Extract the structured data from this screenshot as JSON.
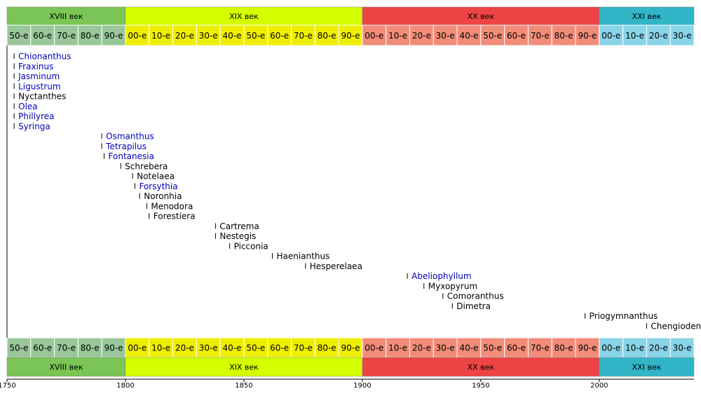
{
  "chart_data": {
    "type": "timeline",
    "xlim": [
      1750,
      2040
    ],
    "xticks": [
      1750,
      1800,
      1850,
      1900,
      1950,
      2000
    ],
    "eras": [
      {
        "label": "XVIII век",
        "start": 1750,
        "end": 1800,
        "color": "#7ac555",
        "decade_color": "#99c799",
        "decades": [
          {
            "label": "50-е",
            "start": 1750,
            "end": 1760
          },
          {
            "label": "60-е",
            "start": 1760,
            "end": 1770
          },
          {
            "label": "70-е",
            "start": 1770,
            "end": 1780
          },
          {
            "label": "80-е",
            "start": 1780,
            "end": 1790
          },
          {
            "label": "90-е",
            "start": 1790,
            "end": 1800
          }
        ]
      },
      {
        "label": "XIX век",
        "start": 1800,
        "end": 1900,
        "color": "#d4ff00",
        "decade_color": "#eeee00",
        "decades": [
          {
            "label": "00-е",
            "start": 1800,
            "end": 1810
          },
          {
            "label": "10-е",
            "start": 1810,
            "end": 1820
          },
          {
            "label": "20-е",
            "start": 1820,
            "end": 1830
          },
          {
            "label": "30-е",
            "start": 1830,
            "end": 1840
          },
          {
            "label": "40-е",
            "start": 1840,
            "end": 1850
          },
          {
            "label": "50-е",
            "start": 1850,
            "end": 1860
          },
          {
            "label": "60-е",
            "start": 1860,
            "end": 1870
          },
          {
            "label": "70-е",
            "start": 1870,
            "end": 1880
          },
          {
            "label": "80-е",
            "start": 1880,
            "end": 1890
          },
          {
            "label": "90-е",
            "start": 1890,
            "end": 1900
          }
        ]
      },
      {
        "label": "XX век",
        "start": 1900,
        "end": 2000,
        "color": "#ee4444",
        "decade_color": "#f28c78",
        "decades": [
          {
            "label": "00-е",
            "start": 1900,
            "end": 1910
          },
          {
            "label": "10-е",
            "start": 1910,
            "end": 1920
          },
          {
            "label": "20-е",
            "start": 1920,
            "end": 1930
          },
          {
            "label": "30-е",
            "start": 1930,
            "end": 1940
          },
          {
            "label": "40-е",
            "start": 1940,
            "end": 1950
          },
          {
            "label": "50-е",
            "start": 1950,
            "end": 1960
          },
          {
            "label": "60-е",
            "start": 1960,
            "end": 1970
          },
          {
            "label": "70-е",
            "start": 1970,
            "end": 1980
          },
          {
            "label": "80-е",
            "start": 1980,
            "end": 1990
          },
          {
            "label": "90-е",
            "start": 1990,
            "end": 2000
          }
        ]
      },
      {
        "label": "XXI век",
        "start": 2000,
        "end": 2040,
        "color": "#33b5c8",
        "decade_color": "#88d4e8",
        "decades": [
          {
            "label": "00-е",
            "start": 2000,
            "end": 2010
          },
          {
            "label": "10-е",
            "start": 2010,
            "end": 2020
          },
          {
            "label": "20-е",
            "start": 2020,
            "end": 2030
          },
          {
            "label": "30-е",
            "start": 2030,
            "end": 2040
          }
        ]
      }
    ],
    "items": [
      {
        "name": "Chionanthus",
        "year": 1753,
        "color": "#0000bb"
      },
      {
        "name": "Fraxinus",
        "year": 1753,
        "color": "#0000bb"
      },
      {
        "name": "Jasminum",
        "year": 1753,
        "color": "#0000bb"
      },
      {
        "name": "Ligustrum",
        "year": 1753,
        "color": "#0000bb"
      },
      {
        "name": "Nyctanthes",
        "year": 1753,
        "color": "#000000"
      },
      {
        "name": "Olea",
        "year": 1753,
        "color": "#0000bb"
      },
      {
        "name": "Phillyrea",
        "year": 1753,
        "color": "#0000bb"
      },
      {
        "name": "Syringa",
        "year": 1753,
        "color": "#0000bb"
      },
      {
        "name": "Osmanthus",
        "year": 1790,
        "color": "#0000bb"
      },
      {
        "name": "Tetrapilus",
        "year": 1790,
        "color": "#0000bb"
      },
      {
        "name": "Fontanesia",
        "year": 1791,
        "color": "#0000bb"
      },
      {
        "name": "Schrebera",
        "year": 1798,
        "color": "#000000"
      },
      {
        "name": "Notelaea",
        "year": 1803,
        "color": "#000000"
      },
      {
        "name": "Forsythia",
        "year": 1804,
        "color": "#0000bb"
      },
      {
        "name": "Noronhia",
        "year": 1806,
        "color": "#000000"
      },
      {
        "name": "Menodora",
        "year": 1809,
        "color": "#000000"
      },
      {
        "name": "Forestiera",
        "year": 1810,
        "color": "#000000"
      },
      {
        "name": "Cartrema",
        "year": 1838,
        "color": "#000000"
      },
      {
        "name": "Nestegis",
        "year": 1838,
        "color": "#000000"
      },
      {
        "name": "Picconia",
        "year": 1844,
        "color": "#000000"
      },
      {
        "name": "Haenianthus",
        "year": 1862,
        "color": "#000000"
      },
      {
        "name": "Hesperelaea",
        "year": 1876,
        "color": "#000000"
      },
      {
        "name": "Abeliophyllum",
        "year": 1919,
        "color": "#0000bb"
      },
      {
        "name": "Myxopyrum",
        "year": 1926,
        "color": "#000000"
      },
      {
        "name": "Comoranthus",
        "year": 1934,
        "color": "#000000"
      },
      {
        "name": "Dimetra",
        "year": 1938,
        "color": "#000000"
      },
      {
        "name": "Priogymnanthus",
        "year": 1994,
        "color": "#000000"
      },
      {
        "name": "Chengiodendron",
        "year": 2020,
        "color": "#000000"
      }
    ]
  }
}
